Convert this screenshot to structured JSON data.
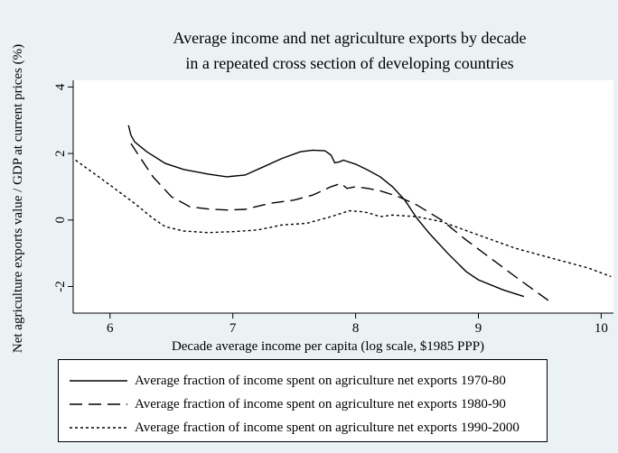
{
  "chart_data": {
    "type": "line",
    "title": [
      "Average income and net agriculture exports by decade",
      "in a repeated cross section of developing countries"
    ],
    "xlabel": "Decade average income per capita (log scale, $1985 PPP)",
    "ylabel": "Net agriculture exports value / GDP at current prices (%)",
    "xlim": [
      5.7,
      10.1
    ],
    "ylim": [
      -2.8,
      4.2
    ],
    "xticks": [
      6,
      7,
      8,
      9,
      10
    ],
    "yticks": [
      -2,
      0,
      2,
      4
    ],
    "grid": false,
    "legend_position": "bottom",
    "series": [
      {
        "name": "Average fraction of income spent on agriculture net exports 1970-80",
        "dash": "solid",
        "x": [
          6.15,
          6.17,
          6.2,
          6.3,
          6.45,
          6.6,
          6.8,
          6.95,
          7.1,
          7.25,
          7.4,
          7.55,
          7.65,
          7.75,
          7.8,
          7.83,
          7.87,
          7.9,
          8.0,
          8.1,
          8.2,
          8.3,
          8.4,
          8.5,
          8.6,
          8.75,
          8.9,
          9.0,
          9.2,
          9.37
        ],
        "y": [
          2.85,
          2.55,
          2.35,
          2.05,
          1.7,
          1.52,
          1.38,
          1.3,
          1.35,
          1.6,
          1.85,
          2.05,
          2.1,
          2.08,
          1.95,
          1.72,
          1.75,
          1.8,
          1.68,
          1.5,
          1.3,
          1.0,
          0.6,
          0.05,
          -0.4,
          -1.0,
          -1.55,
          -1.8,
          -2.1,
          -2.3
        ]
      },
      {
        "name": "Average fraction of income spent on agriculture net exports 1980-90",
        "dash": "long",
        "x": [
          6.17,
          6.25,
          6.35,
          6.5,
          6.65,
          6.8,
          6.95,
          7.1,
          7.3,
          7.5,
          7.65,
          7.8,
          7.88,
          7.93,
          8.0,
          8.1,
          8.2,
          8.35,
          8.5,
          8.7,
          8.9,
          9.1,
          9.3,
          9.6
        ],
        "y": [
          2.3,
          1.85,
          1.3,
          0.7,
          0.4,
          0.33,
          0.3,
          0.32,
          0.5,
          0.6,
          0.75,
          1.0,
          1.1,
          0.95,
          1.0,
          0.95,
          0.88,
          0.7,
          0.45,
          0.0,
          -0.6,
          -1.15,
          -1.7,
          -2.5
        ]
      },
      {
        "name": "Average fraction of income spent on agriculture net exports 1990-2000",
        "dash": "short",
        "x": [
          5.72,
          6.0,
          6.2,
          6.35,
          6.45,
          6.6,
          6.8,
          7.0,
          7.2,
          7.4,
          7.6,
          7.8,
          7.95,
          8.05,
          8.1,
          8.2,
          8.3,
          8.5,
          8.7,
          9.0,
          9.3,
          9.6,
          9.9,
          10.08
        ],
        "y": [
          1.8,
          1.05,
          0.5,
          0.05,
          -0.2,
          -0.33,
          -0.38,
          -0.35,
          -0.3,
          -0.15,
          -0.1,
          0.1,
          0.28,
          0.25,
          0.22,
          0.1,
          0.15,
          0.1,
          -0.05,
          -0.45,
          -0.85,
          -1.15,
          -1.45,
          -1.7
        ]
      }
    ]
  }
}
